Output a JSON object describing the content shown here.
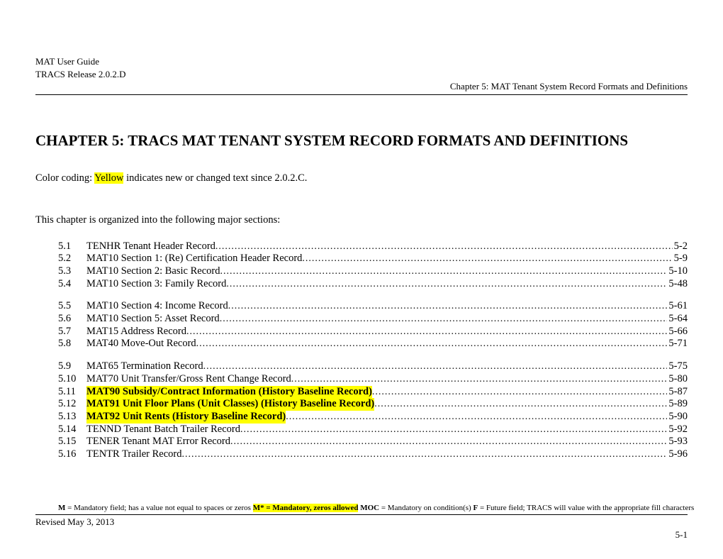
{
  "header": {
    "line1": "MAT User Guide",
    "line2": "TRACS Release 2.0.2.D",
    "line3": "Chapter 5:  MAT Tenant System Record Formats and Definitions"
  },
  "chapter_title": "CHAPTER 5:   TRACS MAT TENANT SYSTEM RECORD FORMATS AND DEFINITIONS",
  "color_coding": {
    "prefix": "Color coding: ",
    "highlight": "Yellow",
    "suffix": " indicates new or changed text since 2.0.2.C."
  },
  "intro": "This chapter is organized into the following major sections:",
  "toc_groups": [
    [
      {
        "num": "5.1",
        "title": "TENHR Tenant Header Record",
        "page": "5-2",
        "highlight": false
      },
      {
        "num": "5.2",
        "title": "MAT10 Section 1:  (Re) Certification Header Record",
        "page": "5-9",
        "highlight": false
      },
      {
        "num": "5.3",
        "title": "MAT10 Section 2:  Basic Record",
        "page": "5-10",
        "highlight": false
      },
      {
        "num": "5.4",
        "title": "MAT10 Section 3:  Family Record",
        "page": "5-48",
        "highlight": false
      }
    ],
    [
      {
        "num": "5.5",
        "title": "MAT10 Section 4:  Income Record",
        "page": "5-61",
        "highlight": false
      },
      {
        "num": "5.6",
        "title": "MAT10 Section 5:  Asset Record",
        "page": "5-64",
        "highlight": false
      },
      {
        "num": "5.7",
        "title": "MAT15 Address Record",
        "page": "5-66",
        "highlight": false
      },
      {
        "num": "5.8",
        "title": "MAT40 Move-Out Record",
        "page": "5-71",
        "highlight": false
      }
    ],
    [
      {
        "num": "5.9",
        "title": "MAT65 Termination Record",
        "page": "5-75",
        "highlight": false
      },
      {
        "num": "5.10",
        "title": "MAT70 Unit Transfer/Gross Rent Change Record",
        "page": "5-80",
        "highlight": false
      },
      {
        "num": "5.11",
        "title": "MAT90 Subsidy/Contract Information (History Baseline Record)",
        "page": "5-87",
        "highlight": true
      },
      {
        "num": "5.12",
        "title": "MAT91 Unit Floor Plans (Unit Classes) (History Baseline Record)",
        "page": "5-89",
        "highlight": true
      },
      {
        "num": "5.13",
        "title": "MAT92 Unit Rents (History Baseline Record)",
        "page": "5-90",
        "highlight": true
      },
      {
        "num": "5.14",
        "title": "TENND Tenant Batch Trailer Record",
        "page": "5-92",
        "highlight": false
      },
      {
        "num": "5.15",
        "title": "TENER Tenant MAT Error Record",
        "page": "5-93",
        "highlight": false
      },
      {
        "num": "5.16",
        "title": "TENTR Trailer Record",
        "page": "5-96",
        "highlight": false
      }
    ]
  ],
  "footnote": {
    "m_label": "M",
    "m_text": " = Mandatory field; has a value not equal to spaces or zeros   ",
    "mstar_label": "M* = Mandatory, zeros allowed",
    "gap1": "     ",
    "moc_label": "MOC",
    "moc_text": " = Mandatory on condition(s)   ",
    "f_label": "F",
    "f_text": " = Future field; TRACS will value with the appropriate fill characters"
  },
  "revised": "Revised May 3, 2013",
  "page_number": "5-1"
}
